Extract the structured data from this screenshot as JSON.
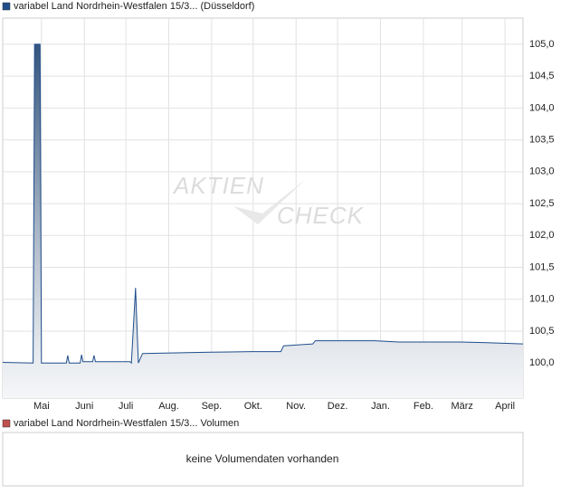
{
  "chart_data": {
    "type": "line",
    "series": [
      {
        "name": "variabel Land Nordrhein-Westfalen 15/3... (Düsseldorf)",
        "color": "#1f4e8c",
        "values": [
          100.01,
          100.0,
          105.0,
          105.0,
          100.0,
          100.0,
          100.0,
          100.12,
          100.0,
          100.0,
          100.13,
          100.02,
          100.02,
          100.12,
          100.02,
          100.02,
          100.0,
          101.18,
          100.0,
          100.15,
          100.17,
          100.18,
          100.18,
          100.27,
          100.3,
          100.35,
          100.35,
          100.33,
          100.33,
          100.32,
          100.3
        ]
      }
    ],
    "x": [
      0,
      22,
      23,
      27,
      28,
      40,
      46,
      47,
      48,
      56,
      57,
      58,
      65,
      66,
      67,
      92,
      93,
      96,
      98,
      101,
      150,
      180,
      201,
      203,
      224,
      226,
      269,
      286,
      330,
      350,
      376
    ],
    "xlim": [
      0,
      376
    ],
    "xticks": [
      {
        "value": 28,
        "label": "Mai"
      },
      {
        "value": 59,
        "label": "Juni"
      },
      {
        "value": 89,
        "label": "Juli"
      },
      {
        "value": 120,
        "label": "Aug."
      },
      {
        "value": 151,
        "label": "Sep."
      },
      {
        "value": 181,
        "label": "Okt."
      },
      {
        "value": 212,
        "label": "Nov."
      },
      {
        "value": 242,
        "label": "Dez."
      },
      {
        "value": 273,
        "label": "Jan."
      },
      {
        "value": 304,
        "label": "Feb."
      },
      {
        "value": 332,
        "label": "März"
      },
      {
        "value": 363,
        "label": "April"
      }
    ],
    "ylim": [
      99.45,
      105.41
    ],
    "yticks": [
      {
        "value": 100.0,
        "label": "100,0"
      },
      {
        "value": 100.5,
        "label": "100,5"
      },
      {
        "value": 101.0,
        "label": "101,0"
      },
      {
        "value": 101.5,
        "label": "101,5"
      },
      {
        "value": 102.0,
        "label": "102,0"
      },
      {
        "value": 102.5,
        "label": "102,5"
      },
      {
        "value": 103.0,
        "label": "103,0"
      },
      {
        "value": 103.5,
        "label": "103,5"
      },
      {
        "value": 104.0,
        "label": "104,0"
      },
      {
        "value": 104.5,
        "label": "104,5"
      },
      {
        "value": 105.0,
        "label": "105,0"
      }
    ],
    "grid": true,
    "watermark": [
      "AKTIEN",
      "CHECK"
    ]
  },
  "volume_panel": {
    "legend": "variabel Land Nordrhein-Westfalen 15/3... Volumen",
    "color": "#c0504d",
    "message": "keine Volumendaten vorhanden"
  }
}
